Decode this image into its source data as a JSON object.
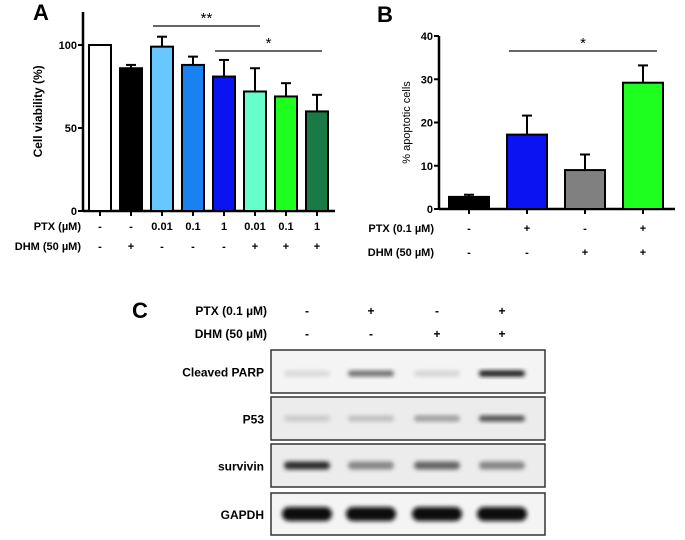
{
  "panels": {
    "A": {
      "label": "A"
    },
    "B": {
      "label": "B"
    },
    "C": {
      "label": "C"
    }
  },
  "chart_data": [
    {
      "panel": "A",
      "type": "bar",
      "title": "",
      "xlabel": "",
      "ylabel": "Cell viability (%)",
      "ylim": [
        0,
        120
      ],
      "yticks": [
        0,
        50,
        100
      ],
      "grid": false,
      "legend": null,
      "categories": [
        "1",
        "2",
        "3",
        "4",
        "5",
        "6",
        "7",
        "8"
      ],
      "condition_rows": [
        {
          "label": "PTX (µM)",
          "values": [
            "-",
            "-",
            "0.01",
            "0.1",
            "1",
            "0.01",
            "0.1",
            "1"
          ]
        },
        {
          "label": "DHM (50 µM)",
          "values": [
            "-",
            "+",
            "-",
            "-",
            "-",
            "+",
            "+",
            "+"
          ]
        }
      ],
      "values": [
        100,
        86,
        99,
        88,
        81,
        72,
        69,
        60
      ],
      "errors": [
        0,
        2,
        6,
        5,
        10,
        14,
        8,
        10
      ],
      "colors": [
        "#ffffff",
        "#000000",
        "#66c8ff",
        "#1a82f0",
        "#0a14f0",
        "#66ffcc",
        "#1fff1f",
        "#1a7a46"
      ],
      "annotations": [
        {
          "text": "**",
          "from": 3,
          "to": 6
        },
        {
          "text": "*",
          "from": 5,
          "to": 8
        }
      ]
    },
    {
      "panel": "B",
      "type": "bar",
      "title": "",
      "xlabel": "",
      "ylabel": "% apoptotic cells",
      "ylim": [
        0,
        40
      ],
      "yticks": [
        0,
        10,
        20,
        30,
        40
      ],
      "grid": false,
      "legend": null,
      "categories": [
        "1",
        "2",
        "3",
        "4"
      ],
      "condition_rows": [
        {
          "label": "PTX (0.1 µM)",
          "values": [
            "-",
            "+",
            "-",
            "+"
          ]
        },
        {
          "label": "DHM (50 µM)",
          "values": [
            "-",
            "-",
            "+",
            "+"
          ]
        }
      ],
      "values": [
        2.8,
        17.2,
        9.0,
        29.2
      ],
      "errors": [
        0.5,
        4.4,
        3.6,
        4.0
      ],
      "colors": [
        "#000000",
        "#0a14f0",
        "#808080",
        "#1fff1f"
      ],
      "annotations": [
        {
          "text": "*",
          "from": 2,
          "to": 4
        }
      ]
    }
  ],
  "blot": {
    "condition_rows": [
      {
        "label": "PTX  (0.1 µM)",
        "values": [
          "-",
          "+",
          "-",
          "+"
        ]
      },
      {
        "label": "DHM (50 µM)",
        "values": [
          "-",
          "-",
          "+",
          "+"
        ]
      }
    ],
    "rows": [
      {
        "label": "Cleaved PARP",
        "intensity": [
          0.08,
          0.55,
          0.1,
          0.95
        ]
      },
      {
        "label": "P53",
        "intensity": [
          0.15,
          0.2,
          0.35,
          0.7
        ]
      },
      {
        "label": "survivin",
        "intensity": [
          0.85,
          0.45,
          0.6,
          0.45
        ]
      },
      {
        "label": "GAPDH",
        "intensity": [
          1.0,
          1.0,
          1.0,
          1.0
        ]
      }
    ]
  }
}
